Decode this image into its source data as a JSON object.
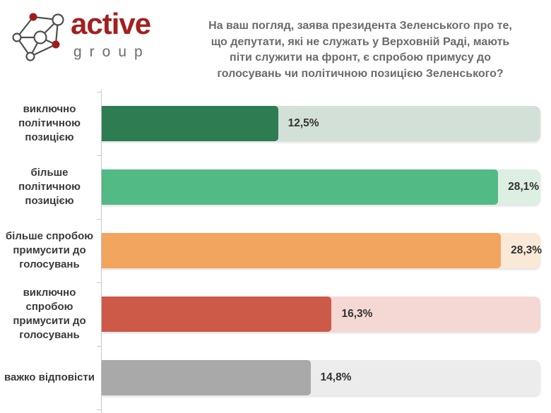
{
  "logo": {
    "name": "active",
    "subname": "group",
    "brand_red": "#a01d1d",
    "line_gray": "#4f4f4f",
    "text_gray": "#6b6b6b"
  },
  "question": "На ваш погляд, заява президента Зеленського про те,\nщо депутати, які не служать у Верховній Раді, мають\nпіти служити на фронт, є спробою примусу до\nголосувань чи політичною позицією Зеленського?",
  "chart_data": {
    "type": "bar",
    "orientation": "horizontal",
    "title": "На ваш погляд, заява президента Зеленського про те, що депутати, які не служать у Верховній Раді, мають піти служити на фронт, є спробою примусу до голосувань чи політичною позицією Зеленського?",
    "xlabel": "",
    "ylabel": "",
    "axis_max": 31.1,
    "grid": false,
    "legend": false,
    "categories": [
      "виключно політичною позицією",
      "більше політичною позицією",
      "більше спробою примусити до голосувань",
      "виключно спробою примусити до голосувань",
      "важко відповісти"
    ],
    "values": [
      12.5,
      28.1,
      28.3,
      16.3,
      14.8
    ],
    "rows": [
      {
        "label": "виключно\nполітичною\nпозицією",
        "value": 12.5,
        "value_label": "12,5%",
        "bar_color": "#2e7c51",
        "track_color": "#d3e0d7"
      },
      {
        "label": "більше політичною\nпозицією",
        "value": 28.1,
        "value_label": "28,1%",
        "bar_color": "#52ba84",
        "track_color": "#ddeee3"
      },
      {
        "label": "більше спробою\nпримусити до\nголосувань",
        "value": 28.3,
        "value_label": "28,3%",
        "bar_color": "#f1a55e",
        "track_color": "#fbe9d8"
      },
      {
        "label": "виключно спробою\nпримусити до\nголосувань",
        "value": 16.3,
        "value_label": "16,3%",
        "bar_color": "#cd5948",
        "track_color": "#f5d8d4"
      },
      {
        "label": "важко відповісти",
        "value": 14.8,
        "value_label": "14,8%",
        "bar_color": "#a9a9a9",
        "track_color": "#ececec"
      }
    ]
  }
}
